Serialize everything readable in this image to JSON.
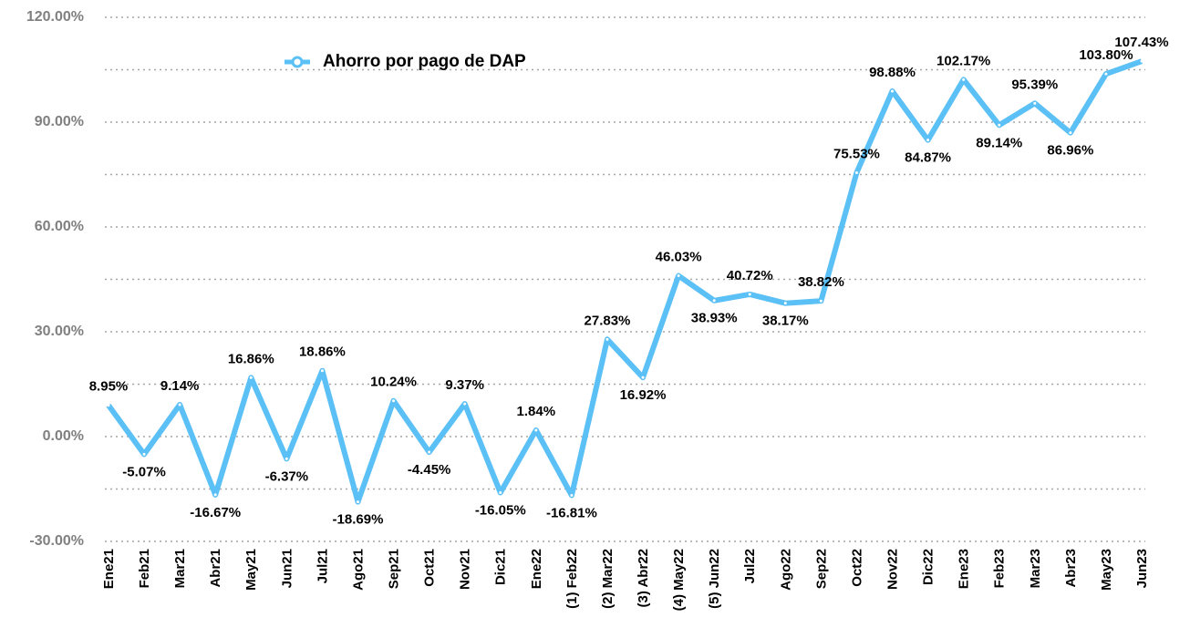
{
  "chart_data": {
    "type": "line",
    "categories": [
      "Ene21",
      "Feb21",
      "Mar21",
      "Abr21",
      "May21",
      "Jun21",
      "Jul21",
      "Ago21",
      "Sep21",
      "Oct21",
      "Nov21",
      "Dic21",
      "Ene22",
      "(1) Feb22",
      "(2) Mar22",
      "(3) Abr22",
      "(4) May22",
      "(5) Jun22",
      "Jul22",
      "Ago22",
      "Sep22",
      "Oct22",
      "Nov22",
      "Dic22",
      "Ene23",
      "Feb23",
      "Mar23",
      "Abr23",
      "May23",
      "Jun23"
    ],
    "series": [
      {
        "name": "Ahorro por pago de DAP",
        "color": "#5bc0f6",
        "values": [
          8.95,
          -5.07,
          9.14,
          -16.67,
          16.86,
          -6.37,
          18.86,
          -18.69,
          10.24,
          -4.45,
          9.37,
          -16.05,
          1.84,
          -16.81,
          27.83,
          16.92,
          46.03,
          38.93,
          40.72,
          38.17,
          38.82,
          75.53,
          98.88,
          84.87,
          102.17,
          89.14,
          95.39,
          86.96,
          103.8,
          107.43
        ],
        "value_labels": [
          "8.95%",
          "-5.07%",
          "9.14%",
          "-16.67%",
          "16.86%",
          "-6.37%",
          "18.86%",
          "-18.69%",
          "10.24%",
          "-4.45%",
          "9.37%",
          "-16.05%",
          "1.84%",
          "-16.81%",
          "27.83%",
          "16.92%",
          "46.03%",
          "38.93%",
          "40.72%",
          "38.17%",
          "38.82%",
          "75.53%",
          "98.88%",
          "84.87%",
          "102.17%",
          "89.14%",
          "95.39%",
          "86.96%",
          "103.80%",
          "107.43%"
        ]
      }
    ],
    "ylim": [
      -30,
      120
    ],
    "yticks": [
      {
        "value": -30,
        "label": "-30.00%"
      },
      {
        "value": 0,
        "label": "0.00%"
      },
      {
        "value": 30,
        "label": "30.00%"
      },
      {
        "value": 60,
        "label": "60.00%"
      },
      {
        "value": 90,
        "label": "90.00%"
      },
      {
        "value": 120,
        "label": "120.00%"
      }
    ],
    "minor_yticks": [
      -15,
      15,
      45,
      75,
      105
    ],
    "grid": true,
    "legend": "top-left"
  }
}
